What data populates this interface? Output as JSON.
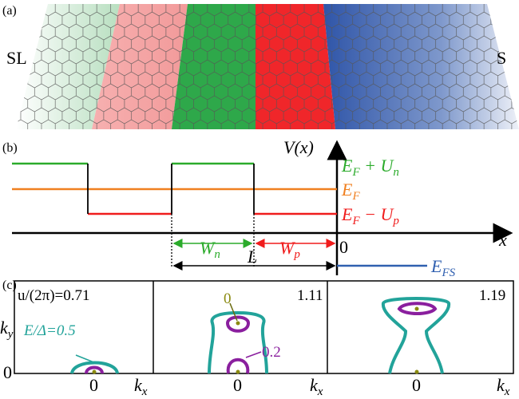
{
  "panel_a": {
    "label": "(a)",
    "left": "SL",
    "right": "S"
  },
  "panel_b": {
    "label": "(b)",
    "axis_y": "V(x)",
    "axis_x": "x",
    "origin": "0",
    "level_up": [
      "E",
      "F",
      " + U",
      "n"
    ],
    "level_mid": [
      "E",
      "F"
    ],
    "level_down": [
      "E",
      "F",
      " − U",
      "p"
    ],
    "width_n": [
      "W",
      "n"
    ],
    "width_p": [
      "W",
      "p"
    ],
    "length": "L",
    "level_s": [
      "E",
      "FS"
    ]
  },
  "panel_c": {
    "label": "(c)",
    "axis_y": [
      "k",
      "y"
    ],
    "zero_y": "0",
    "axis_x": [
      "k",
      "x"
    ],
    "panels": [
      {
        "tag": "u/(2π)=0.71",
        "energy": "E/Δ=0.5",
        "zero_x": "0"
      },
      {
        "tag": "1.11",
        "inner": "0",
        "outer": "0.2",
        "zero_x": "0"
      },
      {
        "tag": "1.19",
        "zero_x": "0"
      }
    ]
  }
}
